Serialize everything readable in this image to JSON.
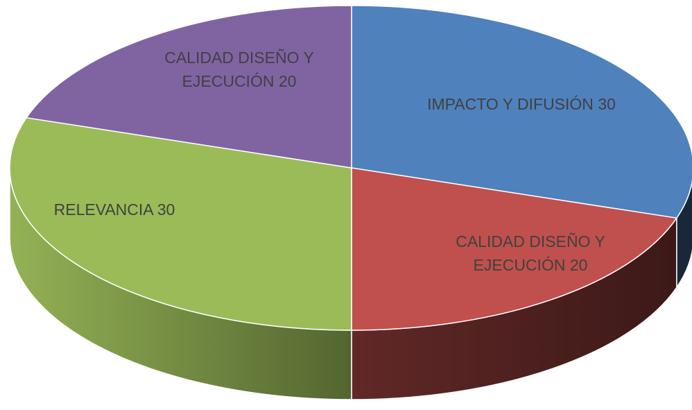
{
  "chart_data": {
    "type": "pie",
    "categories": [
      "IMPACTO Y DIFUSIÓN",
      "CALIDAD DISEÑO Y EJECUCIÓN",
      "RELEVANCIA",
      "CALIDAD DISEÑO Y EJECUCIÓN"
    ],
    "values": [
      30,
      20,
      30,
      20
    ],
    "colors": [
      "#4f81bd",
      "#c0504d",
      "#9bbb59",
      "#8064a2"
    ]
  }
}
